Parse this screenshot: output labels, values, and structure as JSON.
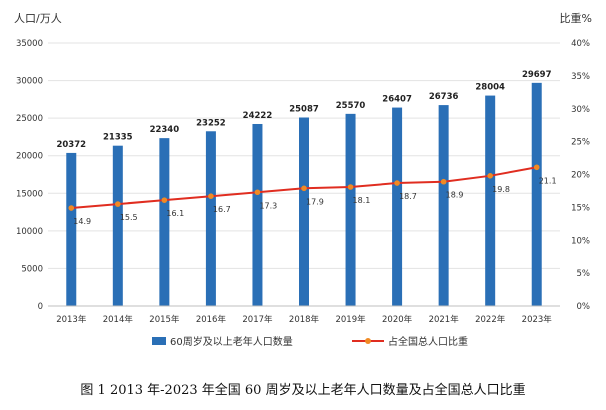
{
  "chart_data": {
    "type": "bar",
    "categories": [
      "2013年",
      "2014年",
      "2015年",
      "2016年",
      "2017年",
      "2018年",
      "2019年",
      "2020年",
      "2021年",
      "2022年",
      "2023年"
    ],
    "series": [
      {
        "name": "60周岁及以上老年人口数量",
        "type": "bar",
        "axis": "left",
        "color": "#2a6fb6",
        "values": [
          20372,
          21335,
          22340,
          23252,
          24222,
          25087,
          25570,
          26407,
          26736,
          28004,
          29697
        ]
      },
      {
        "name": "占全国总人口比重",
        "type": "line",
        "axis": "right",
        "color": "#e02d20",
        "marker_color": "#f08a24",
        "values": [
          14.9,
          15.5,
          16.1,
          16.7,
          17.3,
          17.9,
          18.1,
          18.7,
          18.9,
          19.8,
          21.1
        ]
      }
    ],
    "ylabel_left": "人口/万人",
    "ylabel_right": "比重%",
    "ylim_left": [
      0,
      35000
    ],
    "ylim_right": [
      0,
      40
    ],
    "left_ticks": [
      "0",
      "5000",
      "10000",
      "15000",
      "20000",
      "25000",
      "30000",
      "35000"
    ],
    "right_ticks": [
      "0%",
      "5%",
      "10%",
      "15%",
      "20%",
      "25%",
      "30%",
      "35%",
      "40%"
    ],
    "grid": true,
    "legend_position": "bottom"
  },
  "caption": "图 1    2013 年-2023 年全国 60 周岁及以上老年人口数量及占全国总人口比重"
}
